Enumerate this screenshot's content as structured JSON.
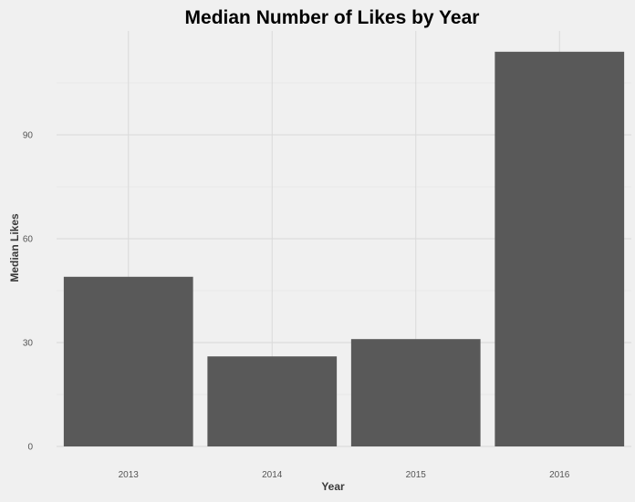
{
  "chart_data": {
    "type": "bar",
    "title": "Median Number of Likes by Year",
    "xlabel": "Year",
    "ylabel": "Median Likes",
    "categories": [
      "2013",
      "2014",
      "2015",
      "2016"
    ],
    "values": [
      49,
      26,
      31,
      114
    ],
    "ylim": [
      0,
      120
    ],
    "yticks": [
      0,
      30,
      60,
      90
    ],
    "grid": true,
    "legend": "none",
    "bar_color": "#595959",
    "grid_color": "#d9d9d9",
    "background_color": "#f0f0f0"
  }
}
